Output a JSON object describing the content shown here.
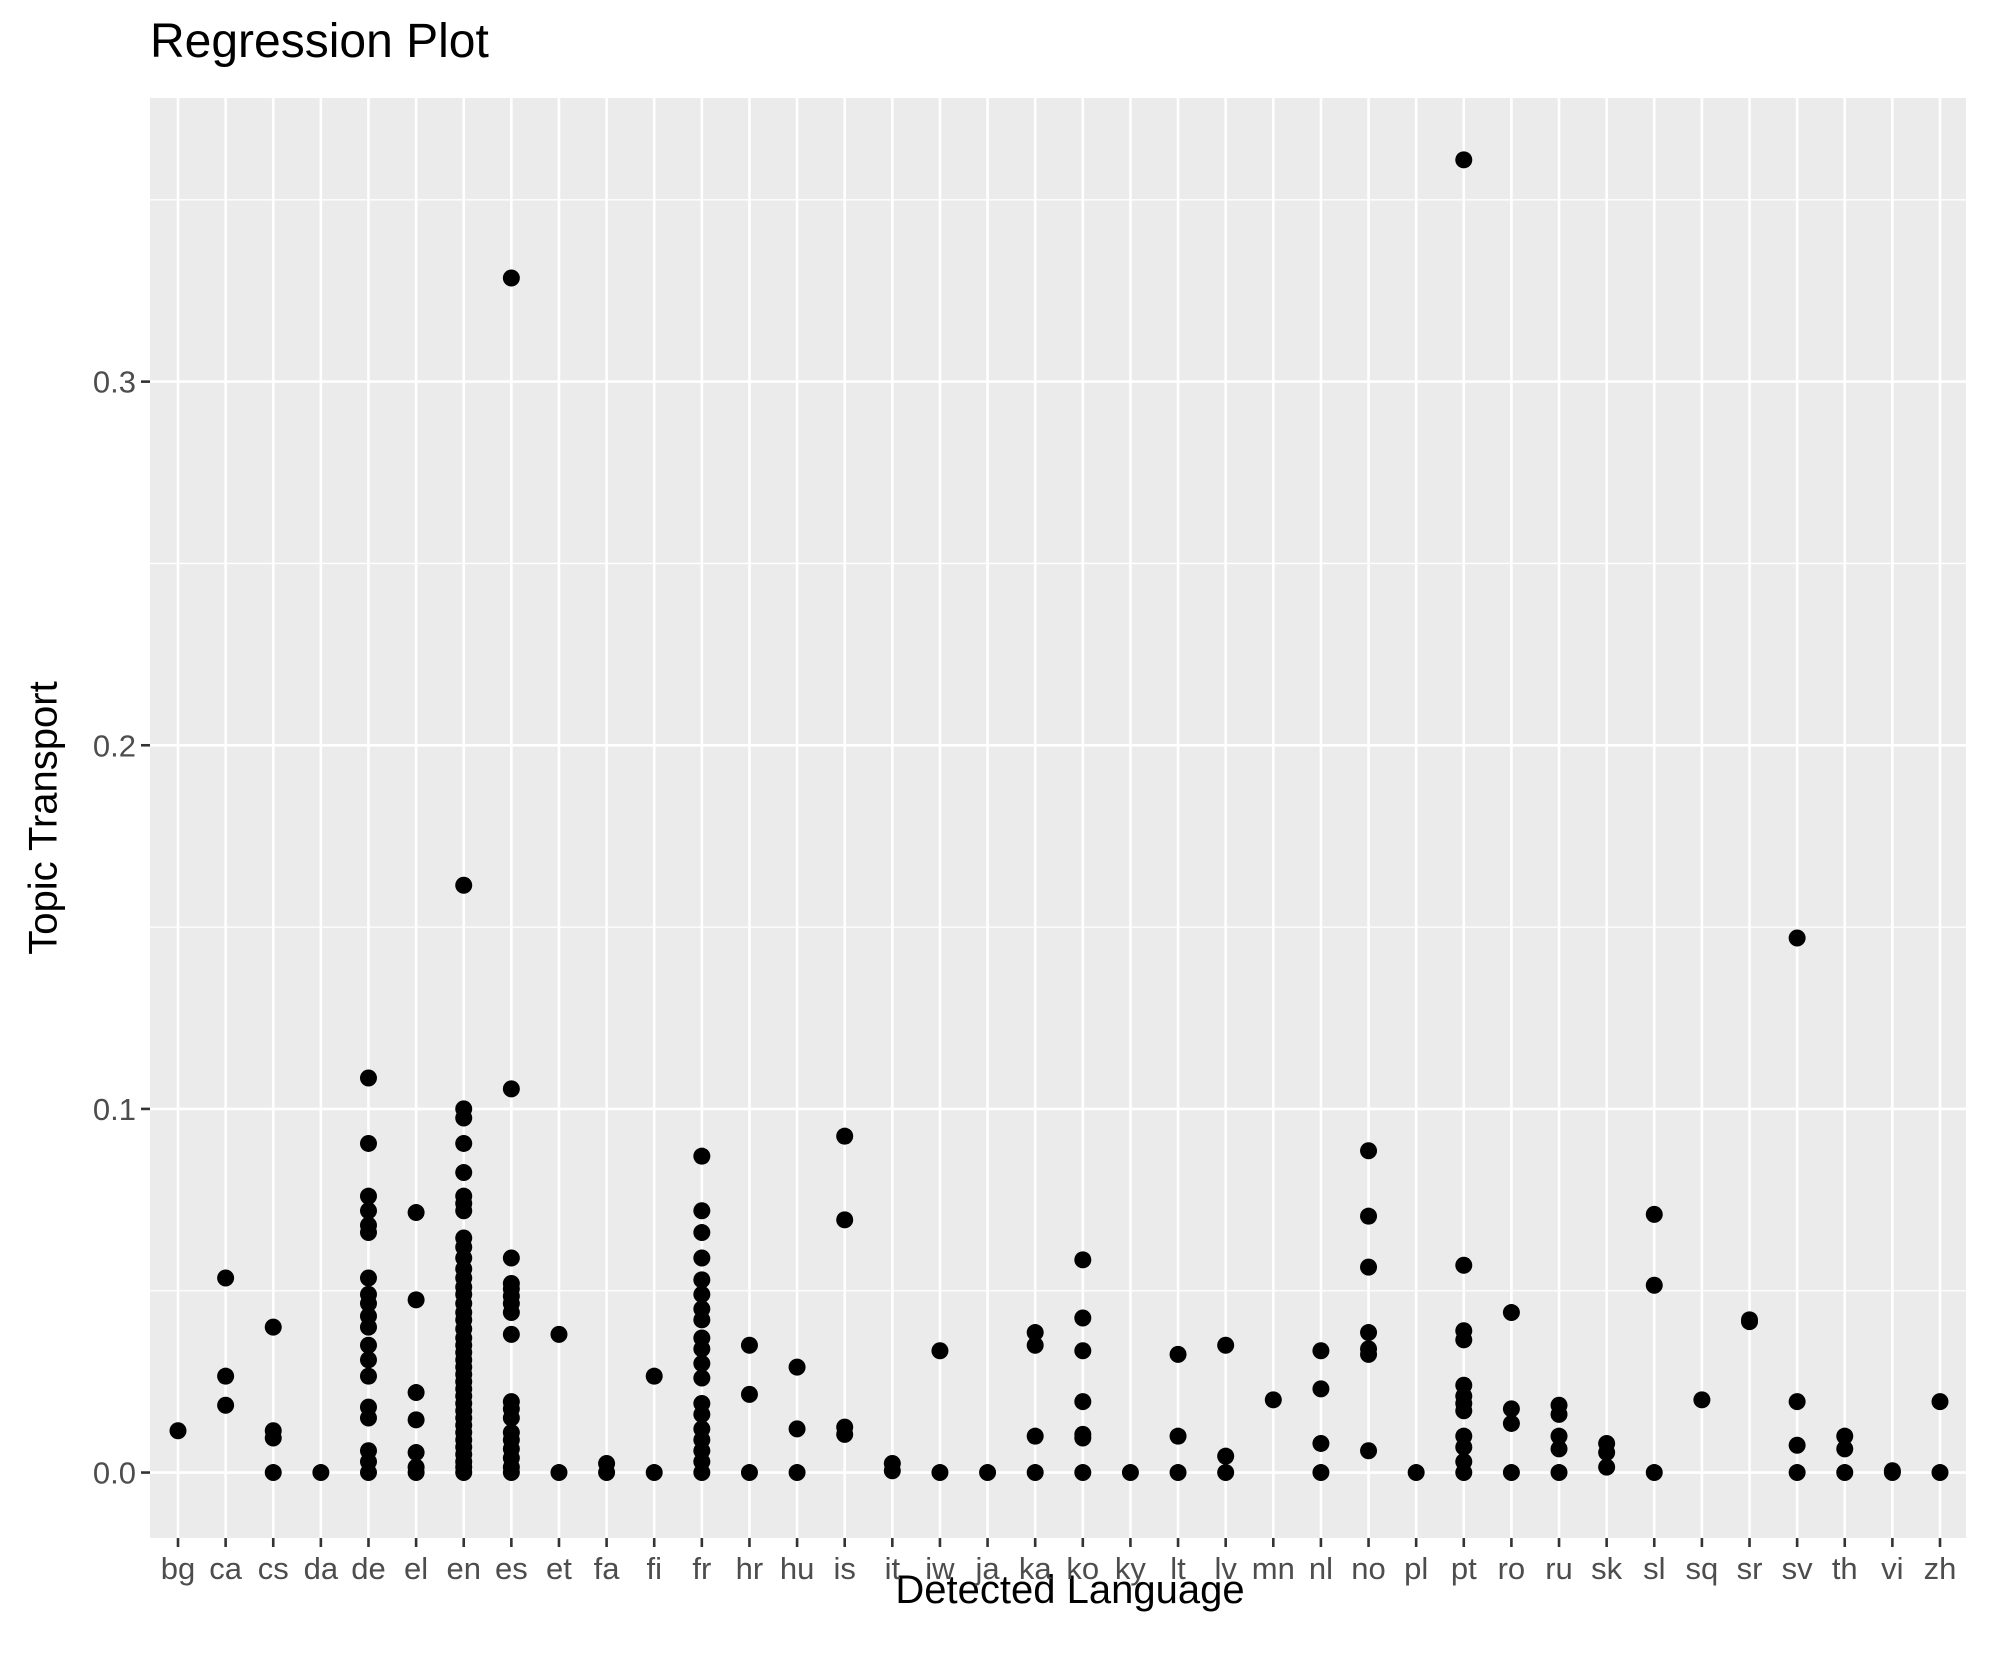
{
  "chart_data": {
    "type": "scatter",
    "title": "Regression Plot",
    "xlabel": "Detected Language",
    "ylabel": "Topic Transport",
    "categories": [
      "bg",
      "ca",
      "cs",
      "da",
      "de",
      "el",
      "en",
      "es",
      "et",
      "fa",
      "fi",
      "fr",
      "hr",
      "hu",
      "is",
      "it",
      "iw",
      "ja",
      "ka",
      "ko",
      "ky",
      "lt",
      "lv",
      "mn",
      "nl",
      "no",
      "pl",
      "pt",
      "ro",
      "ru",
      "sk",
      "sl",
      "sq",
      "sr",
      "sv",
      "th",
      "vi",
      "zh"
    ],
    "yticks": [
      0.0,
      0.1,
      0.2,
      0.3
    ],
    "ytick_labels": [
      "0.0",
      "0.1",
      "0.2",
      "0.3"
    ],
    "ylim": [
      -0.018,
      0.378
    ],
    "grid": true,
    "points": [
      [
        "bg",
        0.0115
      ],
      [
        "ca",
        0.0535
      ],
      [
        "ca",
        0.0265
      ],
      [
        "ca",
        0.0185
      ],
      [
        "cs",
        0.04
      ],
      [
        "cs",
        0.0115
      ],
      [
        "cs",
        0.0095
      ],
      [
        "cs",
        0.0
      ],
      [
        "da",
        0.0
      ],
      [
        "de",
        0.1085
      ],
      [
        "de",
        0.0905
      ],
      [
        "de",
        0.076
      ],
      [
        "de",
        0.072
      ],
      [
        "de",
        0.068
      ],
      [
        "de",
        0.066
      ],
      [
        "de",
        0.0535
      ],
      [
        "de",
        0.049
      ],
      [
        "de",
        0.0465
      ],
      [
        "de",
        0.043
      ],
      [
        "de",
        0.04
      ],
      [
        "de",
        0.035
      ],
      [
        "de",
        0.031
      ],
      [
        "de",
        0.0265
      ],
      [
        "de",
        0.018
      ],
      [
        "de",
        0.015
      ],
      [
        "de",
        0.006
      ],
      [
        "de",
        0.003
      ],
      [
        "de",
        0.0
      ],
      [
        "el",
        0.0715
      ],
      [
        "el",
        0.0475
      ],
      [
        "el",
        0.022
      ],
      [
        "el",
        0.0145
      ],
      [
        "el",
        0.0055
      ],
      [
        "el",
        0.0015
      ],
      [
        "el",
        0.0
      ],
      [
        "en",
        0.1615
      ],
      [
        "en",
        0.1
      ],
      [
        "en",
        0.0975
      ],
      [
        "en",
        0.0905
      ],
      [
        "en",
        0.0825
      ],
      [
        "en",
        0.076
      ],
      [
        "en",
        0.074
      ],
      [
        "en",
        0.072
      ],
      [
        "en",
        0.0645
      ],
      [
        "en",
        0.062
      ],
      [
        "en",
        0.059
      ],
      [
        "en",
        0.056
      ],
      [
        "en",
        0.0535
      ],
      [
        "en",
        0.051
      ],
      [
        "en",
        0.049
      ],
      [
        "en",
        0.0465
      ],
      [
        "en",
        0.044
      ],
      [
        "en",
        0.042
      ],
      [
        "en",
        0.0395
      ],
      [
        "en",
        0.037
      ],
      [
        "en",
        0.035
      ],
      [
        "en",
        0.033
      ],
      [
        "en",
        0.031
      ],
      [
        "en",
        0.029
      ],
      [
        "en",
        0.027
      ],
      [
        "en",
        0.025
      ],
      [
        "en",
        0.023
      ],
      [
        "en",
        0.021
      ],
      [
        "en",
        0.019
      ],
      [
        "en",
        0.017
      ],
      [
        "en",
        0.015
      ],
      [
        "en",
        0.013
      ],
      [
        "en",
        0.011
      ],
      [
        "en",
        0.009
      ],
      [
        "en",
        0.007
      ],
      [
        "en",
        0.005
      ],
      [
        "en",
        0.003
      ],
      [
        "en",
        0.0015
      ],
      [
        "en",
        0.0
      ],
      [
        "es",
        0.3285
      ],
      [
        "es",
        0.1055
      ],
      [
        "es",
        0.059
      ],
      [
        "es",
        0.052
      ],
      [
        "es",
        0.0505
      ],
      [
        "es",
        0.0485
      ],
      [
        "es",
        0.0465
      ],
      [
        "es",
        0.044
      ],
      [
        "es",
        0.038
      ],
      [
        "es",
        0.0195
      ],
      [
        "es",
        0.0175
      ],
      [
        "es",
        0.015
      ],
      [
        "es",
        0.011
      ],
      [
        "es",
        0.009
      ],
      [
        "es",
        0.0065
      ],
      [
        "es",
        0.004
      ],
      [
        "es",
        0.0015
      ],
      [
        "es",
        0.0
      ],
      [
        "et",
        0.038
      ],
      [
        "et",
        0.0
      ],
      [
        "fa",
        0.0025
      ],
      [
        "fa",
        0.0
      ],
      [
        "fi",
        0.0265
      ],
      [
        "fi",
        0.0
      ],
      [
        "fr",
        0.087
      ],
      [
        "fr",
        0.072
      ],
      [
        "fr",
        0.066
      ],
      [
        "fr",
        0.059
      ],
      [
        "fr",
        0.053
      ],
      [
        "fr",
        0.049
      ],
      [
        "fr",
        0.045
      ],
      [
        "fr",
        0.042
      ],
      [
        "fr",
        0.037
      ],
      [
        "fr",
        0.034
      ],
      [
        "fr",
        0.03
      ],
      [
        "fr",
        0.026
      ],
      [
        "fr",
        0.019
      ],
      [
        "fr",
        0.016
      ],
      [
        "fr",
        0.012
      ],
      [
        "fr",
        0.009
      ],
      [
        "fr",
        0.006
      ],
      [
        "fr",
        0.003
      ],
      [
        "fr",
        0.0
      ],
      [
        "hr",
        0.035
      ],
      [
        "hr",
        0.0215
      ],
      [
        "hr",
        0.0
      ],
      [
        "hu",
        0.029
      ],
      [
        "hu",
        0.012
      ],
      [
        "hu",
        0.0
      ],
      [
        "is",
        0.0925
      ],
      [
        "is",
        0.0695
      ],
      [
        "is",
        0.0125
      ],
      [
        "is",
        0.0105
      ],
      [
        "it",
        0.0025
      ],
      [
        "it",
        0.0005
      ],
      [
        "iw",
        0.0335
      ],
      [
        "iw",
        0.0
      ],
      [
        "ja",
        0.0
      ],
      [
        "ka",
        0.0385
      ],
      [
        "ka",
        0.035
      ],
      [
        "ka",
        0.01
      ],
      [
        "ka",
        0.0
      ],
      [
        "ko",
        0.0585
      ],
      [
        "ko",
        0.0425
      ],
      [
        "ko",
        0.0335
      ],
      [
        "ko",
        0.0195
      ],
      [
        "ko",
        0.0105
      ],
      [
        "ko",
        0.0095
      ],
      [
        "ko",
        0.0
      ],
      [
        "ky",
        0.0
      ],
      [
        "lt",
        0.0325
      ],
      [
        "lt",
        0.01
      ],
      [
        "lt",
        0.0
      ],
      [
        "lv",
        0.035
      ],
      [
        "lv",
        0.0045
      ],
      [
        "lv",
        0.0
      ],
      [
        "mn",
        0.02
      ],
      [
        "nl",
        0.0335
      ],
      [
        "nl",
        0.023
      ],
      [
        "nl",
        0.008
      ],
      [
        "nl",
        0.0
      ],
      [
        "no",
        0.0885
      ],
      [
        "no",
        0.0705
      ],
      [
        "no",
        0.0565
      ],
      [
        "no",
        0.0385
      ],
      [
        "no",
        0.034
      ],
      [
        "no",
        0.0325
      ],
      [
        "no",
        0.006
      ],
      [
        "pl",
        0.0
      ],
      [
        "pt",
        0.361
      ],
      [
        "pt",
        0.057
      ],
      [
        "pt",
        0.039
      ],
      [
        "pt",
        0.0365
      ],
      [
        "pt",
        0.024
      ],
      [
        "pt",
        0.021
      ],
      [
        "pt",
        0.019
      ],
      [
        "pt",
        0.017
      ],
      [
        "pt",
        0.01
      ],
      [
        "pt",
        0.007
      ],
      [
        "pt",
        0.003
      ],
      [
        "pt",
        0.0
      ],
      [
        "ro",
        0.044
      ],
      [
        "ro",
        0.0175
      ],
      [
        "ro",
        0.0135
      ],
      [
        "ro",
        0.0
      ],
      [
        "ru",
        0.0185
      ],
      [
        "ru",
        0.016
      ],
      [
        "ru",
        0.01
      ],
      [
        "ru",
        0.0065
      ],
      [
        "ru",
        0.0
      ],
      [
        "sk",
        0.008
      ],
      [
        "sk",
        0.0055
      ],
      [
        "sk",
        0.0015
      ],
      [
        "sl",
        0.071
      ],
      [
        "sl",
        0.0515
      ],
      [
        "sl",
        0.0
      ],
      [
        "sq",
        0.02
      ],
      [
        "sr",
        0.042
      ],
      [
        "sr",
        0.0415
      ],
      [
        "sv",
        0.147
      ],
      [
        "sv",
        0.0195
      ],
      [
        "sv",
        0.0075
      ],
      [
        "sv",
        0.0
      ],
      [
        "th",
        0.01
      ],
      [
        "th",
        0.0065
      ],
      [
        "th",
        0.0
      ],
      [
        "vi",
        0.0005
      ],
      [
        "vi",
        0.0
      ],
      [
        "zh",
        0.0195
      ],
      [
        "zh",
        0.0
      ]
    ]
  }
}
